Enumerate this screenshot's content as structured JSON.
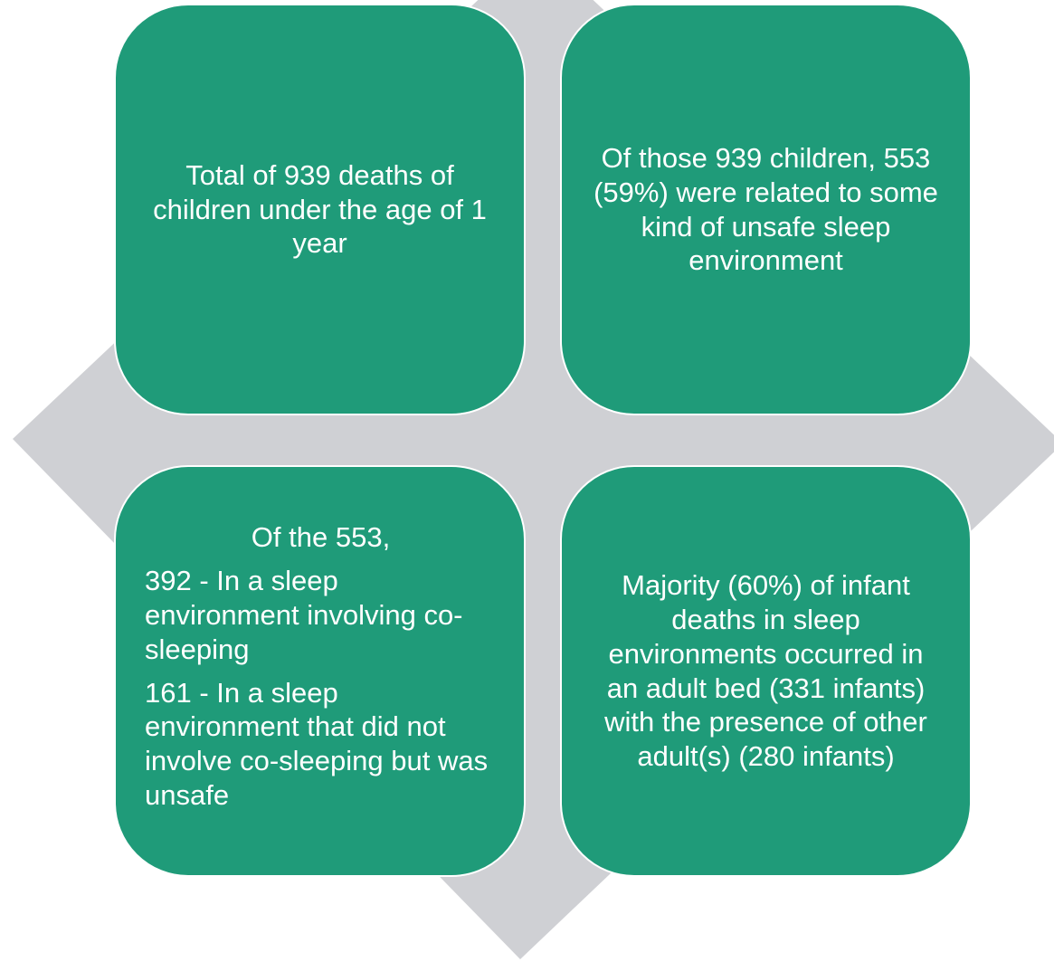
{
  "boxes": [
    {
      "text": "Total of 939 deaths of children under the age of 1 year"
    },
    {
      "text": "Of those 939 children, 553 (59%) were related to some kind of unsafe sleep environment"
    },
    {
      "heading": "Of the 553,",
      "items": [
        "392 - In a sleep environment involving co-sleeping",
        "161 - In a sleep environment that did not involve co-sleeping but was unsafe"
      ]
    },
    {
      "text": "Majority (60%) of infant deaths in sleep environments occurred in an adult bed (331 infants) with the presence of other adult(s) (280 infants)"
    }
  ]
}
